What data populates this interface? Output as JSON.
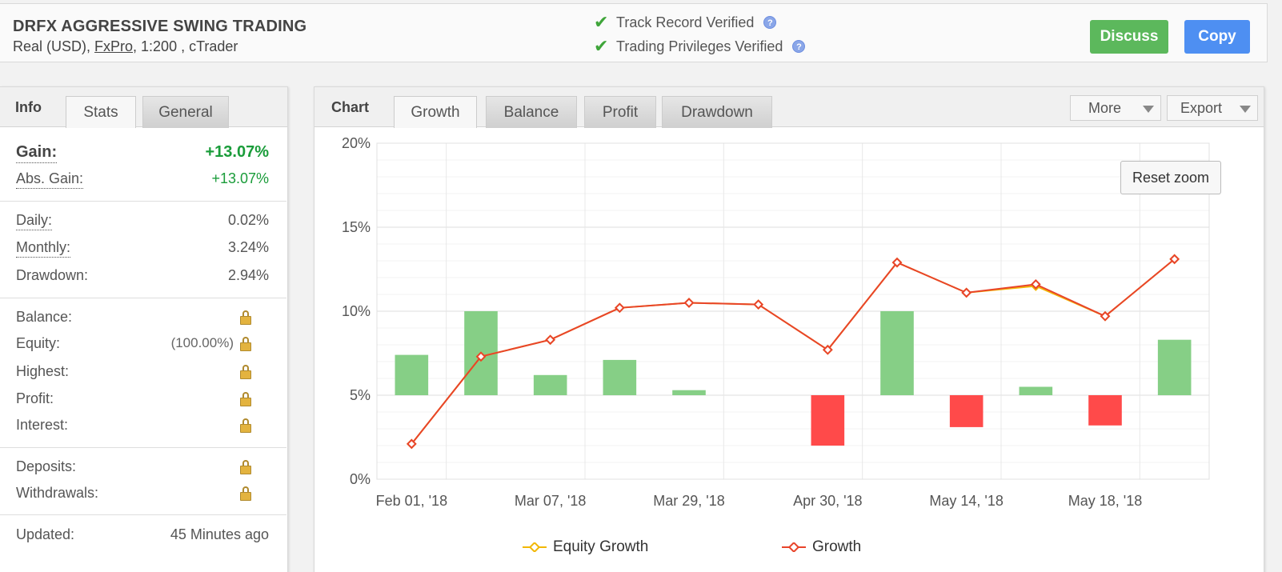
{
  "account": {
    "title": "DRFX AGGRESSIVE SWING TRADING",
    "sub_prefix": "Real (USD), ",
    "broker": "FxPro",
    "sub_suffix": ", 1:200 , cTrader"
  },
  "verification": {
    "track_record": "Track Record Verified",
    "trading_privileges": "Trading Privileges Verified",
    "help_glyph": "?"
  },
  "actions": {
    "discuss": "Discuss",
    "copy": "Copy"
  },
  "left_tabs": {
    "info": "Info",
    "stats": "Stats",
    "general": "General"
  },
  "stats": {
    "gain_label": "Gain:",
    "gain_value": "+13.07%",
    "abs_gain_label": "Abs. Gain:",
    "abs_gain_value": "+13.07%",
    "daily_label": "Daily:",
    "daily_value": "0.02%",
    "monthly_label": "Monthly:",
    "monthly_value": "3.24%",
    "drawdown_label": "Drawdown:",
    "drawdown_value": "2.94%",
    "balance_label": "Balance:",
    "equity_label": "Equity:",
    "equity_pct": "(100.00%)",
    "highest_label": "Highest:",
    "profit_label": "Profit:",
    "interest_label": "Interest:",
    "deposits_label": "Deposits:",
    "withdrawals_label": "Withdrawals:",
    "updated_label": "Updated:",
    "updated_value": "45 Minutes ago"
  },
  "chart_tabs": {
    "chart": "Chart",
    "growth": "Growth",
    "balance": "Balance",
    "profit": "Profit",
    "drawdown": "Drawdown",
    "more": "More",
    "export": "Export",
    "reset_zoom": "Reset zoom"
  },
  "colors": {
    "bar_positive": "#86cf86",
    "bar_negative": "#ff4a4a",
    "growth_line": "#e8442a",
    "equity_line": "#f2b705"
  },
  "chart_data": {
    "type": "line",
    "title": "",
    "xlabel": "",
    "ylabel": "",
    "ylim": [
      0,
      20
    ],
    "y_ticks": [
      "0%",
      "5%",
      "10%",
      "15%",
      "20%"
    ],
    "y_tick_values": [
      0,
      5,
      10,
      15,
      20
    ],
    "x_tick_labels": [
      "Feb 01, '18",
      "Mar 07, '18",
      "Mar 29, '18",
      "Apr 30, '18",
      "May 14, '18",
      "May 18, '18"
    ],
    "x_tick_index": [
      0,
      2,
      4,
      6,
      8,
      10
    ],
    "grid": true,
    "legend_position": "bottom",
    "series": [
      {
        "name": "Equity Growth",
        "type": "line",
        "values": [
          2.1,
          7.3,
          8.3,
          10.2,
          10.5,
          10.4,
          7.7,
          12.9,
          11.1,
          11.5,
          9.7,
          13.1
        ]
      },
      {
        "name": "Growth",
        "type": "line",
        "values": [
          2.1,
          7.3,
          8.3,
          10.2,
          10.5,
          10.4,
          7.7,
          12.9,
          11.1,
          11.6,
          9.7,
          13.1
        ]
      }
    ],
    "bars": {
      "baseline": 5,
      "values": [
        7.4,
        10.0,
        6.2,
        7.1,
        5.3,
        null,
        2.0,
        10.0,
        3.1,
        5.5,
        3.2,
        8.3
      ]
    }
  }
}
